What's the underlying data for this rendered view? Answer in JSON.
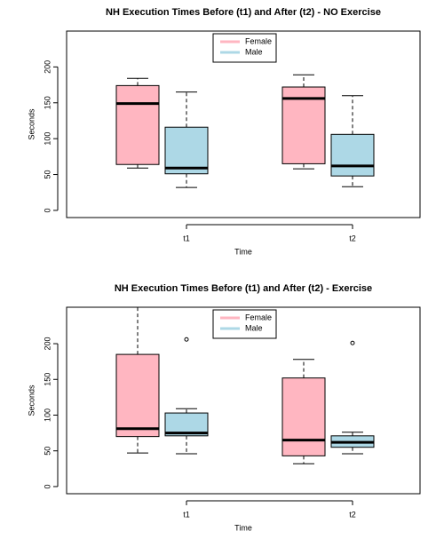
{
  "chart_data": [
    {
      "type": "boxplot",
      "title": "NH Execution Times Before (t1) and After (t2) - NO Exercise",
      "xlabel": "Time",
      "ylabel": "Seconds",
      "categories": [
        "t1",
        "t2"
      ],
      "ylim": [
        -10,
        250
      ],
      "yticks": [
        0,
        50,
        100,
        150,
        200
      ],
      "legend": "top",
      "series": [
        {
          "name": "Female",
          "color": "#ffb6c1",
          "boxes": [
            {
              "min": 59,
              "q1": 64,
              "median": 149,
              "q3": 174,
              "max": 184
            },
            {
              "min": 58,
              "q1": 65,
              "median": 156,
              "q3": 172,
              "max": 189
            }
          ]
        },
        {
          "name": "Male",
          "color": "#add8e6",
          "boxes": [
            {
              "min": 32,
              "q1": 51,
              "median": 59,
              "q3": 116,
              "max": 165
            },
            {
              "min": 33,
              "q1": 48,
              "median": 62,
              "q3": 106,
              "max": 160
            }
          ]
        }
      ]
    },
    {
      "type": "boxplot",
      "title": "NH Execution Times Before (t1) and After (t2) - Exercise",
      "xlabel": "Time",
      "ylabel": "Seconds",
      "categories": [
        "t1",
        "t2"
      ],
      "ylim": [
        -10,
        251
      ],
      "yticks": [
        0,
        50,
        100,
        150,
        200
      ],
      "legend": "top",
      "series": [
        {
          "name": "Female",
          "color": "#ffb6c1",
          "boxes": [
            {
              "min": 47,
              "q1": 70,
              "median": 81,
              "q3": 185,
              "max": 251
            },
            {
              "min": 32,
              "q1": 43,
              "median": 65,
              "q3": 152,
              "max": 178
            }
          ]
        },
        {
          "name": "Male",
          "color": "#add8e6",
          "boxes": [
            {
              "min": 46,
              "q1": 71,
              "median": 75,
              "q3": 103,
              "max": 109,
              "outliers": [
                206
              ]
            },
            {
              "min": 46,
              "q1": 55,
              "median": 62,
              "q3": 71,
              "max": 76,
              "outliers": [
                201
              ]
            }
          ]
        }
      ]
    }
  ]
}
